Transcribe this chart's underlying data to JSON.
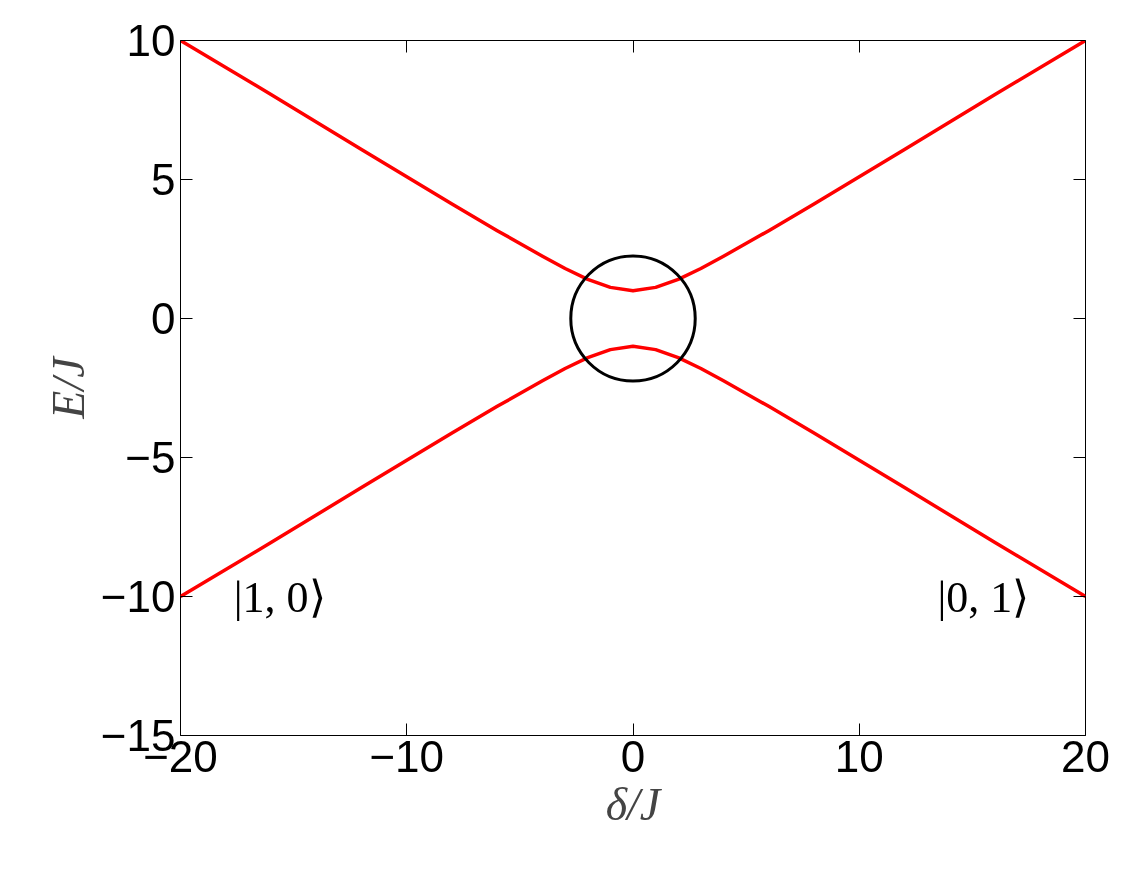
{
  "chart_data": {
    "type": "line",
    "xlabel": "δ/J",
    "ylabel": "E/J",
    "x": [
      -20,
      -16,
      -12,
      -8,
      -6,
      -4,
      -3,
      -2,
      -1,
      0,
      1,
      2,
      3,
      4,
      6,
      8,
      12,
      16,
      20
    ],
    "series": [
      {
        "color": "#ff0000",
        "values": [
          10,
          8.06,
          6.08,
          4.12,
          3.16,
          2.24,
          1.8,
          1.41,
          1.12,
          1,
          1.12,
          1.41,
          1.8,
          2.24,
          3.16,
          4.12,
          6.08,
          8.06,
          10
        ]
      },
      {
        "color": "#ff0000",
        "values": [
          -10,
          -8.06,
          -6.08,
          -4.12,
          -3.16,
          -2.24,
          -1.8,
          -1.41,
          -1.12,
          -1,
          -1.12,
          -1.41,
          -1.8,
          -2.24,
          -3.16,
          -4.12,
          -6.08,
          -8.06,
          -10
        ]
      }
    ],
    "xlim": [
      -20,
      20
    ],
    "ylim": [
      -15,
      10
    ],
    "xticks": [
      -20,
      -10,
      0,
      10,
      20
    ],
    "yticks": [
      -15,
      -10,
      -5,
      0,
      5,
      10
    ],
    "grid": false,
    "marker": "none",
    "line_style": "solid",
    "annotations": [
      "|1, 0⟩",
      "|0, 1⟩"
    ]
  }
}
